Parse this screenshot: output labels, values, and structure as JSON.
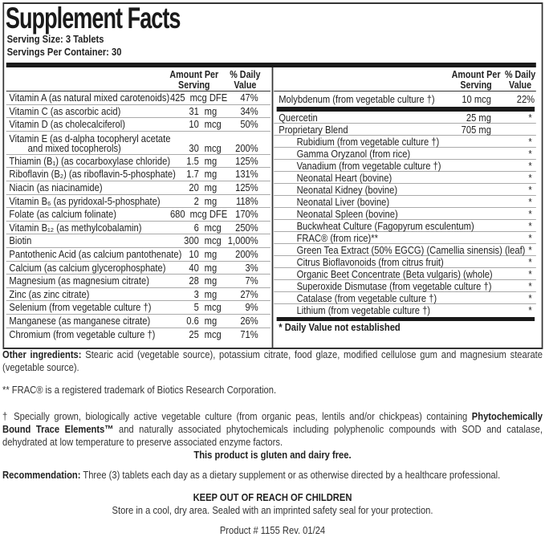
{
  "title": "Supplement Facts",
  "serving_size": "Serving Size: 3 Tablets",
  "servings_per_container": "Servings Per Container: 30",
  "header": {
    "amount_line1": "Amount Per",
    "amount_line2": "Serving",
    "dv_line1": "% Daily",
    "dv_line2": "Value"
  },
  "left_rows": [
    {
      "name": "Vitamin A (as natural mixed carotenoids)",
      "amount": "425",
      "unit": "mcg DFE",
      "dv": "47%"
    },
    {
      "name": "Vitamin C (as ascorbic acid)",
      "amount": "31",
      "unit": "mg",
      "dv": "34%"
    },
    {
      "name": "Vitamin D (as cholecalciferol)",
      "amount": "10",
      "unit": "mcg",
      "dv": "50%"
    },
    {
      "name": "Vitamin E (as d-alpha tocopheryl acetate",
      "name2": "and mixed tocopherols)",
      "amount": "30",
      "unit": "mcg",
      "dv": "200%"
    },
    {
      "name": "Thiamin (B₁) (as cocarboxylase chloride)",
      "amount": "1.5",
      "unit": "mg",
      "dv": "125%"
    },
    {
      "name": "Riboflavin (B₂) (as riboflavin-5-phosphate)",
      "amount": "1.7",
      "unit": "mg",
      "dv": "131%"
    },
    {
      "name": "Niacin (as niacinamide)",
      "amount": "20",
      "unit": "mg",
      "dv": "125%"
    },
    {
      "name": "Vitamin B₆ (as pyridoxal-5-phosphate)",
      "amount": "2",
      "unit": "mg",
      "dv": "118%"
    },
    {
      "name": "Folate (as calcium folinate)",
      "amount": "680",
      "unit": "mcg DFE",
      "dv": "170%"
    },
    {
      "name": "Vitamin B₁₂ (as methylcobalamin)",
      "amount": "6",
      "unit": "mcg",
      "dv": "250%"
    },
    {
      "name": "Biotin",
      "amount": "300",
      "unit": "mcg",
      "dv": "1,000%"
    },
    {
      "name": "Pantothenic Acid (as calcium pantothenate)",
      "amount": "10",
      "unit": "mg",
      "dv": "200%"
    },
    {
      "name": "Calcium (as calcium glycerophosphate)",
      "amount": "40",
      "unit": "mg",
      "dv": "3%"
    },
    {
      "name": "Magnesium (as magnesium citrate)",
      "amount": "28",
      "unit": "mg",
      "dv": "7%"
    },
    {
      "name": "Zinc (as zinc citrate)",
      "amount": "3",
      "unit": "mg",
      "dv": "27%"
    },
    {
      "name": "Selenium (from vegetable culture †)",
      "amount": "5",
      "unit": "mcg",
      "dv": "9%"
    },
    {
      "name": "Manganese (as manganese citrate)",
      "amount": "0.6",
      "unit": "mg",
      "dv": "26%"
    },
    {
      "name": "Chromium (from vegetable culture †)",
      "amount": "25",
      "unit": "mcg",
      "dv": "71%"
    }
  ],
  "molybdenum": {
    "name": "Molybdenum (from vegetable culture †)",
    "amount": "10 mcg",
    "dv": "22%"
  },
  "right_rows": [
    {
      "name": "Quercetin",
      "amount": "25 mg",
      "dv": "*",
      "sub": false
    },
    {
      "name": "Proprietary Blend",
      "amount": "705 mg",
      "dv": "",
      "sub": false
    },
    {
      "name": "Rubidium (from vegetable culture †)",
      "dv": "*",
      "sub": true
    },
    {
      "name": "Gamma Oryzanol (from rice)",
      "dv": "*",
      "sub": true
    },
    {
      "name": "Vanadium (from vegetable culture †)",
      "dv": "*",
      "sub": true
    },
    {
      "name": "Neonatal Heart (bovine)",
      "dv": "*",
      "sub": true
    },
    {
      "name": "Neonatal Kidney (bovine)",
      "dv": "*",
      "sub": true
    },
    {
      "name": "Neonatal Liver (bovine)",
      "dv": "*",
      "sub": true
    },
    {
      "name": "Neonatal Spleen (bovine)",
      "dv": "*",
      "sub": true
    },
    {
      "name": "Buckwheat Culture (Fagopyrum esculentum)",
      "dv": "*",
      "sub": true
    },
    {
      "name": "FRAC® (from rice)**",
      "dv": "*",
      "sub": true
    },
    {
      "name": "Green Tea Extract (50% EGCG) (Camellia sinensis) (leaf)",
      "dv": "*",
      "sub": true
    },
    {
      "name": "Citrus Bioflavonoids (from citrus fruit)",
      "dv": "*",
      "sub": true
    },
    {
      "name": "Organic Beet Concentrate (Beta vulgaris) (whole)",
      "dv": "*",
      "sub": true
    },
    {
      "name": "Superoxide Dismutase  (from vegetable culture †)",
      "dv": "*",
      "sub": true
    },
    {
      "name": "Catalase  (from vegetable culture †)",
      "dv": "*",
      "sub": true
    },
    {
      "name": "Lithium (from vegetable culture †)",
      "dv": "*",
      "sub": true
    }
  ],
  "dv_footnote": "* Daily Value not established",
  "other_ingredients": {
    "label": "Other ingredients:",
    "text": " Stearic acid (vegetable source), potassium citrate, food glaze, modified cellulose gum and magnesium stearate (vegetable source)."
  },
  "frac_note": "** FRAC® is a registered trademark of Biotics Research Corporation.",
  "culture_note": {
    "pre": "† Specially grown, biologically active vegetable culture (from organic peas, lentils and/or chickpeas) containing ",
    "bold": "Phytochemically Bound Trace Elements™",
    "post": " and naturally associated phytochemicals including polyphenolic compounds with SOD and catalase, dehydrated at low temperature to preserve associated enzyme factors."
  },
  "gluten_free": "This product is gluten and dairy free.",
  "recommendation": {
    "label": "Recommendation:",
    "text": " Three (3) tablets each day as a dietary supplement or as otherwise directed by a healthcare professional."
  },
  "warning": "KEEP OUT OF REACH OF CHILDREN",
  "storage": "Store in a cool, dry area. Sealed with an imprinted safety seal for your protection.",
  "product_code": "Product # 1155  Rev. 01/24"
}
